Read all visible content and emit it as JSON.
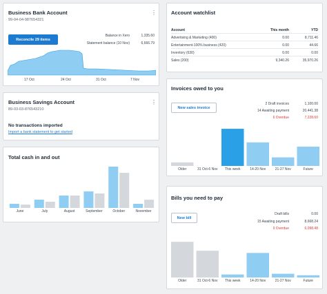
{
  "bank": {
    "title": "Business Bank Account",
    "account_no": "99-04-04-987654321",
    "reconcile_label": "Reconcile 29 items",
    "balance_xero_label": "Balance in Xero",
    "balance_xero_value": "1,335.60",
    "statement_label": "Statement balance (10 Nov)",
    "statement_value": "6,666.79",
    "x_labels": [
      "17 Oct",
      "24 Oct",
      "31 Oct",
      "7 Nov"
    ]
  },
  "savings": {
    "title": "Business Savings Account",
    "account_no": "89-03-03-876543210",
    "no_tx": "No transactions imported",
    "import_link": "Import a bank statement to get started"
  },
  "cash": {
    "title": "Total cash in and out",
    "months": [
      "June",
      "July",
      "August",
      "September",
      "October",
      "November"
    ],
    "in_values": [
      1,
      2,
      3,
      4,
      10,
      1
    ],
    "out_values": [
      0.8,
      1.5,
      3,
      3.5,
      8.5,
      2
    ]
  },
  "watchlist": {
    "title": "Account watchlist",
    "headers": [
      "Account",
      "This month",
      "YTD"
    ],
    "rows": [
      {
        "account": "Advertising & Marketing (400)",
        "month": "0.00",
        "ytd": "8,711.46"
      },
      {
        "account": "Entertainment-100% business (420)",
        "month": "0.00",
        "ytd": "44.66"
      },
      {
        "account": "Inventory (630)",
        "month": "0.00",
        "ytd": "0.00"
      },
      {
        "account": "Sales (200)",
        "month": "9,340.26",
        "ytd": "35,970.26"
      }
    ]
  },
  "invoices": {
    "title": "Invoices owed to you",
    "new_label": "New sales invoice",
    "lines": [
      {
        "label": "2 Draft invoices",
        "value": "1,100.00",
        "red": false
      },
      {
        "label": "14 Awaiting payment",
        "value": "20,441.38",
        "red": false
      },
      {
        "label": "6 Overdue",
        "value": "7,228.60",
        "red": true
      }
    ],
    "categories": [
      "Older",
      "31 Oct-6 Nov",
      "This week",
      "14-20 Nov",
      "21-27 Nov",
      "Future"
    ],
    "values": [
      0.5,
      0,
      5.2,
      3.3,
      1.2,
      2.7
    ]
  },
  "bills": {
    "title": "Bills you need to pay",
    "new_label": "New bill",
    "lines": [
      {
        "label": "Draft bills",
        "value": "0.00",
        "red": false
      },
      {
        "label": "15 Awaiting payment",
        "value": "8,668.24",
        "red": false
      },
      {
        "label": "9 Overdue",
        "value": "6,098.48",
        "red": true
      }
    ],
    "categories": [
      "Older",
      "31 Oct-6 Nov",
      "This week",
      "14-20 Nov",
      "21-27 Nov",
      "Future"
    ],
    "values": [
      4.8,
      3.6,
      0.4,
      3.3,
      0.5,
      0.3
    ]
  },
  "colors": {
    "accent": "#1c7bd0",
    "bar_blue": "#8fcdf2",
    "bar_blue_strong": "#2aa0e6",
    "bar_grey": "#d4d8dc",
    "area_fill": "#8fcdf2",
    "overdue_red": "#d63b3b"
  }
}
